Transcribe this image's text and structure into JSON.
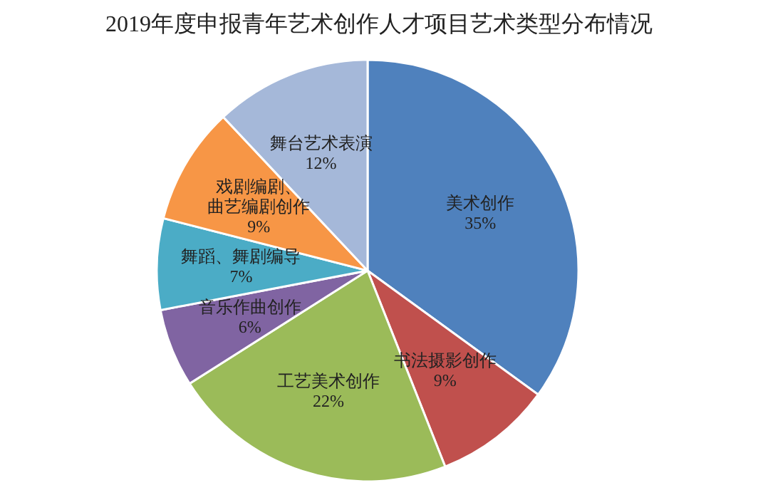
{
  "chart_data": {
    "type": "pie",
    "title": "2019年度申报青年艺术创作人才项目艺术类型分布情况",
    "categories": [
      "美术创作",
      "书法摄影创作",
      "工艺美术创作",
      "音乐作曲创作",
      "舞蹈、舞剧编导",
      "戏剧编剧、曲艺编剧创作",
      "舞台艺术表演"
    ],
    "values": [
      35,
      9,
      22,
      6,
      7,
      9,
      12
    ],
    "value_labels": [
      "35%",
      "9%",
      "22%",
      "6%",
      "7%",
      "9%",
      "12%"
    ],
    "colors": [
      "#4f81bd",
      "#c0504d",
      "#9bbb59",
      "#8064a2",
      "#4bacc6",
      "#f79646",
      "#a5b8d9"
    ]
  }
}
